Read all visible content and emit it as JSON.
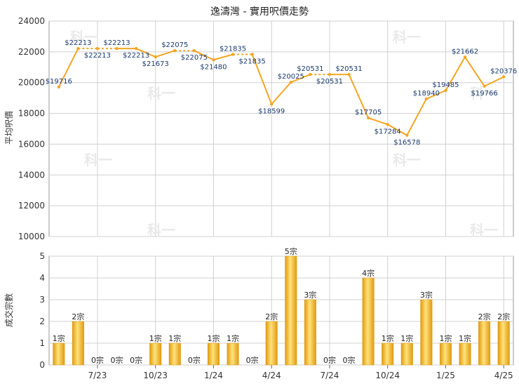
{
  "colors": {
    "line": "#f5a623",
    "bar_light": "#ffe27a",
    "bar_dark": "#e09a10",
    "grid": "#d0d0d0",
    "label": "#1a3a6e"
  },
  "watermark": "科一",
  "chart_data": [
    {
      "type": "line",
      "title": "逸濤灣 - 實用呎價走勢",
      "ylabel": "平均呎價",
      "ylim": [
        10000,
        24000
      ],
      "yticks": [
        10000,
        12000,
        14000,
        16000,
        18000,
        20000,
        22000,
        24000
      ],
      "grid": true,
      "series": [
        {
          "values": [
            19716,
            22213,
            22213,
            22213,
            22213,
            21673,
            22075,
            22075,
            21480,
            21835,
            21835,
            18599,
            20025,
            20531,
            20531,
            20531,
            17705,
            17284,
            16578,
            18940,
            19485,
            21662,
            19766,
            20376
          ],
          "labels": [
            "$19716",
            "$22213",
            "$22213",
            "$22213",
            "$22213",
            "$21673",
            "$22075",
            "$22075",
            "$21480",
            "$21835",
            "$21835",
            "$18599",
            "$20025",
            "$20531",
            "$20531",
            "$20531",
            "$17705",
            "$17284",
            "$16578",
            "$18940",
            "$19485",
            "$21662",
            "$19766",
            "$20376"
          ],
          "interpolated": [
            false,
            false,
            true,
            true,
            false,
            false,
            false,
            true,
            false,
            false,
            true,
            false,
            false,
            false,
            true,
            false,
            false,
            false,
            false,
            false,
            false,
            false,
            false,
            false
          ]
        }
      ]
    },
    {
      "type": "bar",
      "ylabel": "成交宗數",
      "ylim": [
        0,
        5
      ],
      "yticks": [
        0,
        1,
        2,
        3,
        4,
        5
      ],
      "xtick_labels": [
        "7/23",
        "10/23",
        "1/24",
        "4/24",
        "7/24",
        "10/24",
        "1/25",
        "4/25"
      ],
      "grid": true,
      "series": [
        {
          "values": [
            1,
            2,
            0,
            0,
            0,
            1,
            1,
            0,
            1,
            1,
            0,
            2,
            5,
            3,
            0,
            0,
            4,
            1,
            1,
            3,
            1,
            1,
            2,
            2
          ],
          "labels": [
            "1宗",
            "2宗",
            "0宗",
            "0宗",
            "0宗",
            "1宗",
            "1宗",
            "0宗",
            "1宗",
            "1宗",
            "0宗",
            "2宗",
            "5宗",
            "3宗",
            "0宗",
            "0宗",
            "4宗",
            "1宗",
            "1宗",
            "3宗",
            "1宗",
            "1宗",
            "2宗",
            "2宗"
          ]
        }
      ]
    }
  ]
}
